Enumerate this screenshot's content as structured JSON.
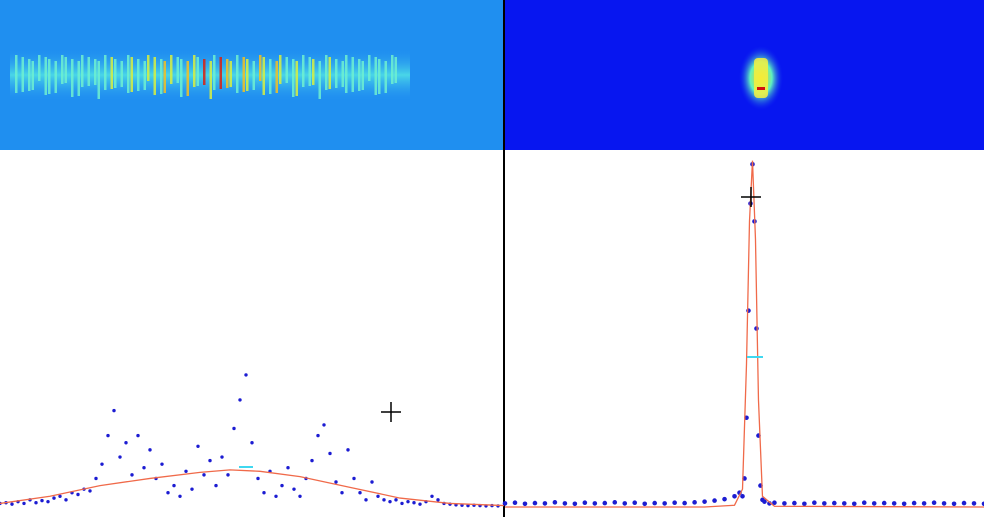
{
  "chart_data": [
    {
      "type": "scatter",
      "xlim": [
        0,
        504
      ],
      "ylim": [
        0,
        1
      ],
      "series": [
        {
          "color": "#1c1cd2",
          "mode": "markers",
          "x": [
            0,
            6,
            12,
            18,
            24,
            30,
            36,
            42,
            48,
            54,
            60,
            66,
            72,
            78,
            84,
            90,
            96,
            102,
            108,
            114,
            120,
            126,
            132,
            138,
            144,
            150,
            156,
            162,
            168,
            174,
            180,
            186,
            192,
            198,
            204,
            210,
            216,
            222,
            228,
            234,
            240,
            246,
            252,
            258,
            264,
            270,
            276,
            282,
            288,
            294,
            300,
            306,
            312,
            318,
            324,
            330,
            336,
            342,
            348,
            354,
            360,
            366,
            372,
            378,
            384,
            390,
            396,
            402,
            408,
            414,
            420,
            426,
            432,
            438,
            444,
            450,
            456,
            462,
            468,
            474,
            480,
            486,
            492,
            498
          ],
          "values": [
            0.01,
            0.012,
            0.008,
            0.015,
            0.01,
            0.02,
            0.012,
            0.018,
            0.015,
            0.025,
            0.03,
            0.02,
            0.04,
            0.035,
            0.05,
            0.045,
            0.08,
            0.12,
            0.2,
            0.27,
            0.14,
            0.18,
            0.09,
            0.2,
            0.11,
            0.16,
            0.08,
            0.12,
            0.04,
            0.06,
            0.03,
            0.1,
            0.05,
            0.17,
            0.09,
            0.13,
            0.06,
            0.14,
            0.09,
            0.22,
            0.3,
            0.37,
            0.18,
            0.08,
            0.04,
            0.1,
            0.03,
            0.06,
            0.11,
            0.05,
            0.03,
            0.08,
            0.13,
            0.2,
            0.23,
            0.15,
            0.07,
            0.04,
            0.16,
            0.08,
            0.04,
            0.02,
            0.07,
            0.03,
            0.02,
            0.015,
            0.02,
            0.01,
            0.015,
            0.012,
            0.008,
            0.015,
            0.03,
            0.02,
            0.01,
            0.008,
            0.006,
            0.005,
            0.004,
            0.005,
            0.004,
            0.003,
            0.004,
            0.003
          ]
        },
        {
          "color": "#f06a4a",
          "mode": "line",
          "x": [
            0,
            50,
            100,
            150,
            200,
            230,
            260,
            300,
            350,
            400,
            450,
            504
          ],
          "values": [
            0.01,
            0.03,
            0.06,
            0.08,
            0.097,
            0.104,
            0.1,
            0.085,
            0.055,
            0.025,
            0.01,
            0.004
          ]
        }
      ]
    },
    {
      "type": "scatter",
      "xlim": [
        0,
        480
      ],
      "ylim": [
        0,
        1
      ],
      "series": [
        {
          "color": "#1c1cd2",
          "mode": "markers",
          "x": [
            0,
            10,
            20,
            30,
            40,
            50,
            60,
            70,
            80,
            90,
            100,
            110,
            120,
            130,
            140,
            150,
            160,
            170,
            180,
            190,
            200,
            210,
            220,
            230,
            235,
            238,
            240,
            242,
            244,
            246,
            248,
            250,
            252,
            254,
            256,
            258,
            260,
            265,
            270,
            280,
            290,
            300,
            310,
            320,
            330,
            340,
            350,
            360,
            370,
            380,
            390,
            400,
            410,
            420,
            430,
            440,
            450,
            460,
            470,
            480
          ],
          "values": [
            0.01,
            0.012,
            0.009,
            0.011,
            0.01,
            0.013,
            0.01,
            0.009,
            0.012,
            0.01,
            0.011,
            0.013,
            0.01,
            0.012,
            0.009,
            0.011,
            0.01,
            0.012,
            0.011,
            0.013,
            0.015,
            0.018,
            0.022,
            0.03,
            0.04,
            0.03,
            0.08,
            0.25,
            0.55,
            0.85,
            0.96,
            0.8,
            0.5,
            0.2,
            0.06,
            0.02,
            0.015,
            0.01,
            0.012,
            0.01,
            0.011,
            0.009,
            0.012,
            0.01,
            0.011,
            0.01,
            0.009,
            0.012,
            0.01,
            0.011,
            0.01,
            0.009,
            0.011,
            0.01,
            0.012,
            0.01,
            0.009,
            0.011,
            0.01,
            0.009
          ]
        },
        {
          "color": "#f06a4a",
          "mode": "line",
          "x": [
            0,
            200,
            230,
            238,
            242,
            245,
            248,
            251,
            254,
            258,
            270,
            480
          ],
          "values": [
            0,
            0,
            0.005,
            0.05,
            0.4,
            0.8,
            0.97,
            0.75,
            0.3,
            0.03,
            0.002,
            0
          ]
        }
      ]
    }
  ]
}
